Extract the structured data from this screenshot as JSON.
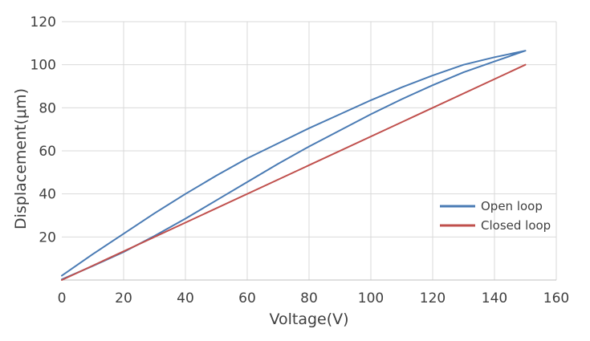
{
  "chart_data": {
    "type": "line",
    "title": "",
    "xlabel": "Voltage(V)",
    "ylabel": "Displacement(μm)",
    "xlim": [
      0,
      160
    ],
    "ylim": [
      0,
      120
    ],
    "x_ticks": [
      0,
      20,
      40,
      60,
      80,
      100,
      120,
      140,
      160
    ],
    "y_ticks": [
      20,
      40,
      60,
      80,
      100,
      120
    ],
    "grid": true,
    "legend_position": "right",
    "series": [
      {
        "name": "Open loop",
        "color": "#4a7bb4",
        "x": [
          0,
          10,
          20,
          30,
          40,
          50,
          60,
          70,
          80,
          90,
          100,
          110,
          120,
          130,
          140,
          150,
          140,
          130,
          120,
          110,
          100,
          90,
          80,
          70,
          60,
          50,
          40,
          30,
          20,
          10,
          0
        ],
        "y": [
          0.3,
          6.5,
          13.0,
          20.5,
          28.5,
          37.0,
          45.5,
          54.0,
          62.0,
          69.5,
          77.0,
          84.0,
          90.5,
          96.5,
          101.5,
          106.5,
          103.5,
          100.0,
          95.0,
          89.5,
          83.5,
          77.0,
          70.5,
          63.5,
          56.5,
          48.5,
          40.0,
          31.0,
          21.5,
          12.0,
          2.0
        ]
      },
      {
        "name": "Closed loop",
        "color": "#c0504d",
        "x": [
          0,
          150
        ],
        "y": [
          0,
          100
        ]
      }
    ]
  }
}
